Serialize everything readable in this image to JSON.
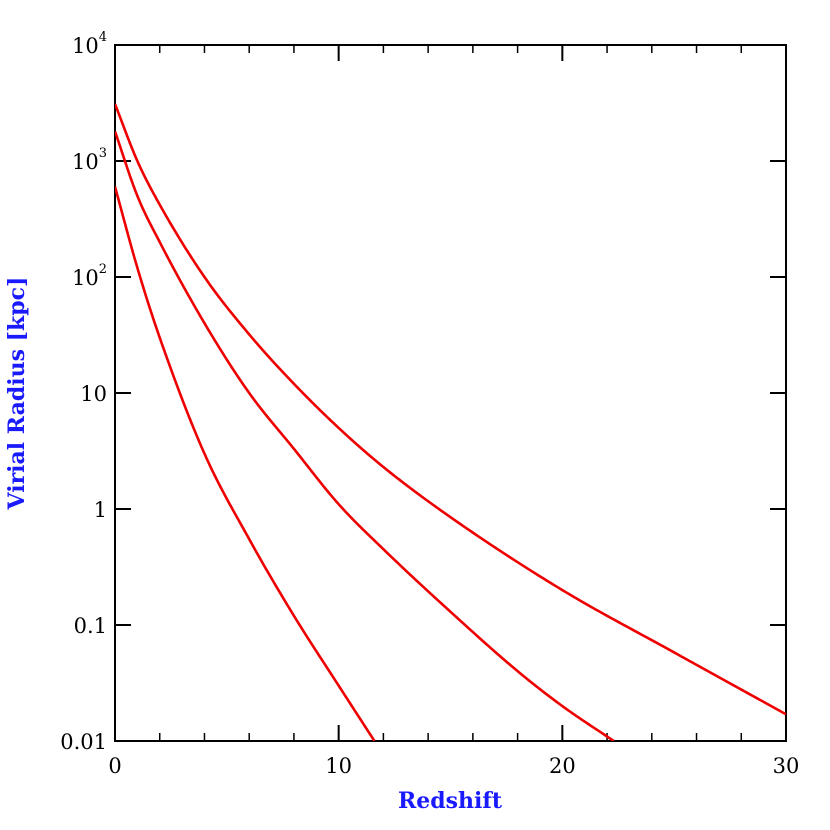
{
  "chart_data": {
    "type": "line",
    "xlabel": "Redshift",
    "ylabel": "Virial Radius [kpc]",
    "xlim": [
      0,
      30
    ],
    "ylim": [
      0.01,
      10000
    ],
    "yscale": "log",
    "grid": false,
    "legend": "none",
    "x_ticks": [
      {
        "value": 0,
        "label": "0"
      },
      {
        "value": 10,
        "label": "10"
      },
      {
        "value": 20,
        "label": "20"
      },
      {
        "value": 30,
        "label": "30"
      }
    ],
    "x_minor_step": 2,
    "y_ticks": [
      {
        "value": 0.01,
        "label": "0.01",
        "sup": ""
      },
      {
        "value": 0.1,
        "label": "0.1",
        "sup": ""
      },
      {
        "value": 1,
        "label": "1",
        "sup": ""
      },
      {
        "value": 10,
        "label": "10",
        "sup": ""
      },
      {
        "value": 100,
        "label": "10",
        "sup": "2"
      },
      {
        "value": 1000,
        "label": "10",
        "sup": "3"
      },
      {
        "value": 10000,
        "label": "10",
        "sup": "4"
      }
    ],
    "series": [
      {
        "color": "#ee0000",
        "x": [
          0,
          1,
          2,
          4,
          6,
          8,
          10,
          12,
          15,
          20,
          25,
          30
        ],
        "y": [
          3100,
          1000,
          420,
          100,
          32,
          12,
          5.0,
          2.3,
          0.85,
          0.2,
          0.058,
          0.017
        ]
      },
      {
        "color": "#ee0000",
        "x": [
          0,
          1,
          2,
          4,
          6,
          8,
          10,
          12,
          15,
          18,
          20,
          22.3
        ],
        "y": [
          1800,
          500,
          200,
          40,
          10,
          3.3,
          1.1,
          0.45,
          0.13,
          0.04,
          0.02,
          0.01
        ]
      },
      {
        "color": "#ee0000",
        "x": [
          0,
          1,
          2,
          4,
          6,
          8,
          10,
          11.6
        ],
        "y": [
          600,
          120,
          30,
          3.0,
          0.55,
          0.12,
          0.03,
          0.01
        ]
      }
    ]
  }
}
